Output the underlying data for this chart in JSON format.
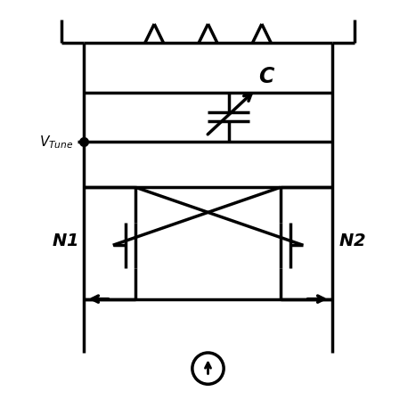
{
  "bg_color": "#ffffff",
  "line_color": "#000000",
  "line_width": 2.5,
  "fig_size": [
    4.67,
    4.67
  ],
  "dpi": 100,
  "xlim": [
    0,
    10
  ],
  "ylim": [
    0,
    10
  ]
}
